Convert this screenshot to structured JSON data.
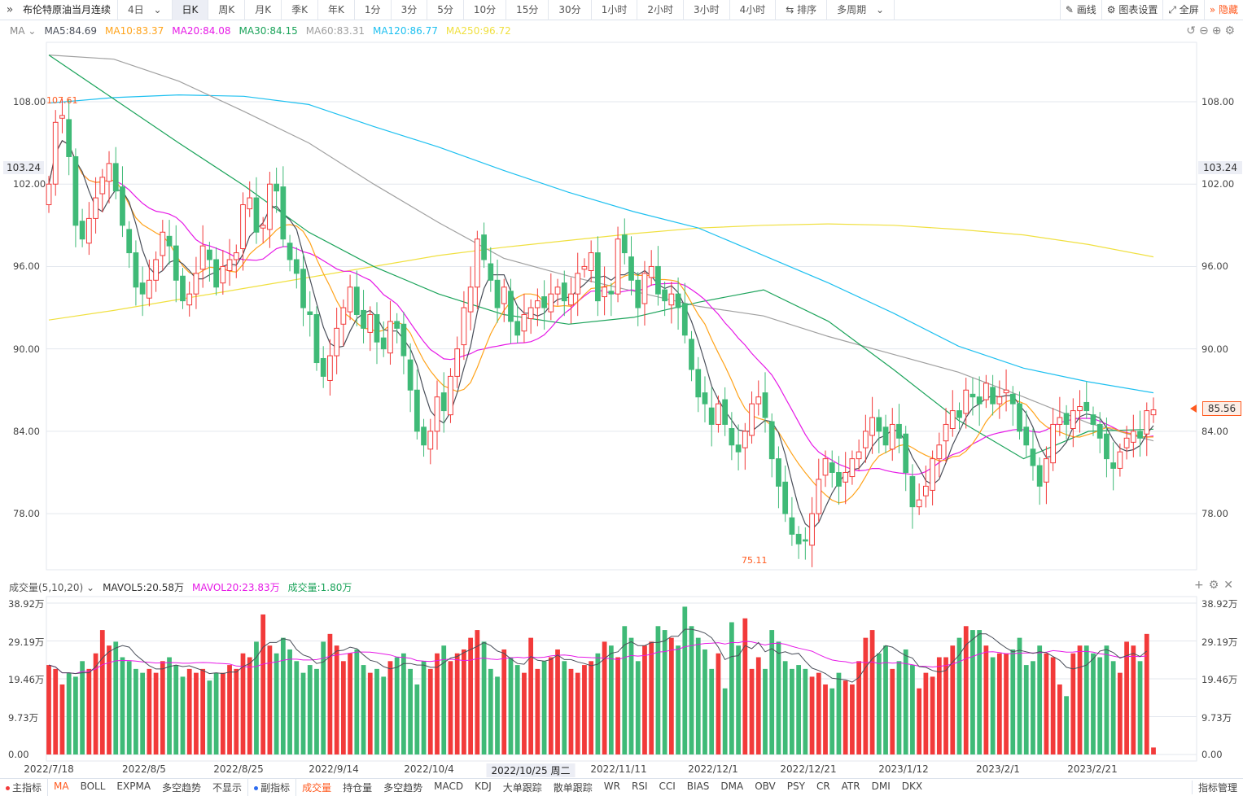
{
  "toolbar": {
    "title": "布伦特原油当月连续",
    "period_select": "4日",
    "tabs": [
      "日K",
      "周K",
      "月K",
      "季K",
      "年K",
      "1分",
      "3分",
      "5分",
      "10分",
      "15分",
      "30分",
      "1小时",
      "2小时",
      "3小时",
      "4小时"
    ],
    "active_tab": "日K",
    "sort": "排序",
    "multi_period": "多周期",
    "draw": "画线",
    "chart_settings": "图表设置",
    "fullscreen": "全屏",
    "hide": "隐藏"
  },
  "ma_legend": {
    "label": "MA",
    "items": [
      {
        "text": "MA5:84.69",
        "color": "#4a4f5a"
      },
      {
        "text": "MA10:83.37",
        "color": "#ffa31a"
      },
      {
        "text": "MA20:84.08",
        "color": "#e619e6"
      },
      {
        "text": "MA30:84.15",
        "color": "#1ba35a"
      },
      {
        "text": "MA60:83.31",
        "color": "#a0a0a0"
      },
      {
        "text": "MA120:86.77",
        "color": "#1ec0f0"
      },
      {
        "text": "MA250:96.72",
        "color": "#f0e040"
      }
    ]
  },
  "price_axis": {
    "ticks": [
      "108.00",
      "102.00",
      "96.00",
      "90.00",
      "84.00",
      "78.00"
    ],
    "crosshair": "103.24",
    "last": "85.56",
    "high_label": "107.61",
    "low_label": "75.11"
  },
  "volume": {
    "header": "成交量(5,10,20)",
    "mavol5": "MAVOL5:20.58万",
    "mavol20": "MAVOL20:23.83万",
    "vol": "成交量:1.80万",
    "ticks": [
      "38.92万",
      "29.19万",
      "19.46万",
      "9.73万",
      "0.00"
    ]
  },
  "dates": [
    "2022/7/18",
    "2022/8/5",
    "2022/8/25",
    "2022/9/14",
    "2022/10/4",
    "2022/10/25 周二",
    "2022/11/11",
    "2022/12/1",
    "2022/12/21",
    "2023/1/12",
    "2023/2/1",
    "2023/2/21"
  ],
  "bottombar": {
    "main_ind": "主指标",
    "main_items": [
      "MA",
      "BOLL",
      "EXPMA",
      "多空趋势",
      "不显示"
    ],
    "sub_ind": "副指标",
    "sub_items": [
      "成交量",
      "持仓量",
      "多空趋势",
      "MACD",
      "KDJ",
      "大单跟踪",
      "散单跟踪",
      "WR",
      "RSI",
      "CCI",
      "BIAS",
      "DMA",
      "OBV",
      "PSY",
      "CR",
      "ATR",
      "DMI",
      "DKX"
    ],
    "manage": "指标管理"
  },
  "colors": {
    "up": "#f23a3a",
    "down": "#3fba77",
    "accent": "#ff5a1f"
  },
  "chart_data": {
    "type": "candlestick",
    "ylim": [
      73.9,
      112.3
    ],
    "close": [
      102,
      106.5,
      107,
      104,
      99,
      98,
      99.5,
      101,
      102.5,
      103.5,
      101.5,
      99,
      97,
      94.5,
      94,
      95,
      96.5,
      98.5,
      97.5,
      95,
      93.5,
      94,
      95.5,
      97.5,
      96.5,
      94.5,
      96,
      96.5,
      97,
      100.5,
      101,
      98.5,
      99,
      102,
      101.5,
      98,
      96.5,
      95.5,
      93,
      92.5,
      89,
      88,
      89.5,
      91.5,
      93,
      94.5,
      92.5,
      91.5,
      92.5,
      90.5,
      90,
      92,
      91.5,
      89.5,
      87,
      84,
      83,
      84,
      86.5,
      85.5,
      88,
      90,
      93,
      94.5,
      98,
      96.5,
      95,
      93,
      94.5,
      92,
      91,
      92.5,
      93,
      93.5,
      93,
      94,
      94.5,
      93.5,
      94,
      95.5,
      96,
      97,
      93.5,
      94.5,
      94,
      98,
      97,
      95,
      93,
      95.5,
      96,
      94,
      93.5,
      94,
      93,
      91,
      88.5,
      86.5,
      86,
      84.5,
      86,
      84.5,
      83,
      82.5,
      84,
      86,
      86.5,
      85,
      82,
      80,
      78,
      76.5,
      75.8,
      76,
      78,
      80.5,
      82,
      81,
      80,
      81,
      82,
      82.5,
      84,
      85,
      84,
      83,
      84.5,
      83.5,
      81,
      78.5,
      79,
      80,
      82,
      83,
      84.5,
      85.5,
      85,
      87,
      86.5,
      86,
      87.5,
      86,
      86.5,
      87,
      86,
      84,
      83,
      81.5,
      80,
      82,
      84.5,
      85,
      84.5,
      85.5,
      85.8,
      85.5,
      84.5,
      83.5,
      82,
      81.3,
      82.5,
      83.5,
      84,
      83.5,
      85.5,
      85.56
    ],
    "volume_wan": [
      23,
      22,
      18,
      21,
      20,
      24,
      22,
      26,
      32,
      28,
      29,
      25,
      24,
      22,
      21,
      22,
      21,
      24,
      25,
      23,
      20,
      22,
      21,
      22,
      19,
      21,
      21,
      23,
      22,
      26,
      25,
      29,
      36,
      28,
      26,
      30,
      27,
      24,
      21,
      23,
      22,
      29,
      31,
      28,
      24,
      26,
      27,
      23,
      21,
      22,
      20,
      24,
      25,
      26,
      22,
      18,
      24,
      22,
      26,
      28,
      24,
      26,
      27,
      30,
      32,
      29,
      22,
      20,
      27,
      25,
      23,
      21,
      30,
      22,
      24,
      25,
      27,
      24,
      22,
      21,
      23,
      24,
      26,
      29,
      28,
      25,
      33,
      30,
      24,
      28,
      29,
      33,
      32,
      30,
      28,
      38,
      33,
      30,
      27,
      22,
      26,
      17,
      34,
      28,
      35,
      22,
      25,
      22,
      32,
      29,
      24,
      22,
      23,
      22,
      20,
      21,
      18,
      17,
      21,
      19,
      18,
      24,
      30,
      32,
      26,
      28,
      22,
      24,
      27,
      23,
      17,
      21,
      20,
      25,
      25,
      28,
      30,
      33,
      32,
      32,
      28,
      25,
      26,
      26,
      27,
      30,
      23,
      24,
      28,
      26,
      25,
      18,
      15,
      26,
      28,
      28,
      26,
      25,
      28,
      24,
      21,
      29,
      28,
      24,
      31,
      1.8
    ],
    "ma_series": {
      "MA250": [
        92.1,
        92.8,
        93.6,
        94.4,
        95.2,
        96.0,
        96.8,
        97.4,
        97.9,
        98.4,
        98.8,
        99.0,
        99.1,
        99.0,
        98.7,
        98.3,
        97.6,
        96.7
      ],
      "MA120": [
        107.9,
        108.3,
        108.5,
        108.4,
        107.8,
        106.2,
        104.7,
        103.0,
        101.4,
        100.0,
        98.8,
        96.8,
        94.8,
        92.6,
        90.2,
        88.6,
        87.6,
        86.8
      ],
      "MA60": [
        111.4,
        111.1,
        109.5,
        107.3,
        105.0,
        102.0,
        99.2,
        96.6,
        95.3,
        94.2,
        93.1,
        92.4,
        90.9,
        89.6,
        88.3,
        86.5,
        84.6,
        83.3
      ],
      "MA30": [
        111.4,
        108.2,
        105.0,
        101.9,
        98.5,
        96.0,
        94.0,
        92.5,
        91.8,
        92.3,
        93.4,
        94.3,
        92.0,
        88.5,
        84.8,
        82.0,
        84.0,
        84.15
      ]
    }
  }
}
